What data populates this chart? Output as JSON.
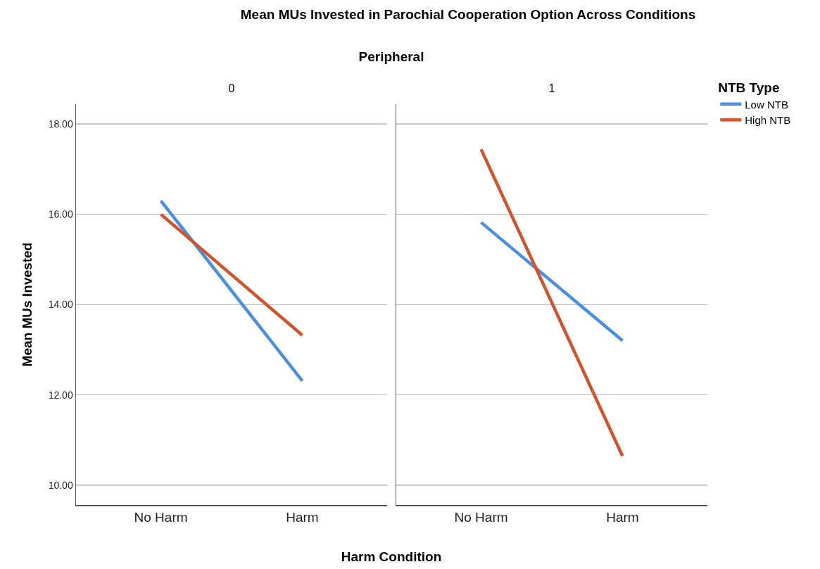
{
  "chart_data": [
    {
      "type": "line",
      "title": "0",
      "ylabel": "Mean MUs Invested",
      "annotations": [
        "Mean MUs Invested in Parochial Cooperation Option Across Conditions",
        "Peripheral"
      ],
      "categories": [
        "No Harm",
        "Harm"
      ],
      "series": [
        {
          "color": "#4a90e2",
          "values": [
            16.3,
            12.31
          ]
        },
        {
          "color": "#d2532a",
          "values": [
            16.0,
            13.32
          ]
        }
      ],
      "ylim": [
        9.56,
        18.44
      ],
      "yticks": [
        {
          "value": 10,
          "label": "10.00"
        },
        {
          "value": 12,
          "label": "12.00"
        },
        {
          "value": 14,
          "label": "14.00"
        },
        {
          "value": 16,
          "label": "16.00"
        },
        {
          "value": 18,
          "label": "18.00"
        }
      ],
      "grid": "y"
    },
    {
      "type": "line",
      "title": "1",
      "xlabel": "Harm Condition",
      "legend_title": "NTB Type",
      "categories": [
        "No Harm",
        "Harm"
      ],
      "series": [
        {
          "name": "Low NTB",
          "color": "#4a90e2",
          "values": [
            15.82,
            13.2
          ]
        },
        {
          "name": "High NTB",
          "color": "#d2532a",
          "values": [
            17.44,
            10.64
          ]
        }
      ],
      "ylim": [
        9.56,
        18.44
      ],
      "yticks": [
        {
          "value": 10,
          "label": null
        },
        {
          "value": 12,
          "label": null
        },
        {
          "value": 14,
          "label": null
        },
        {
          "value": 16,
          "label": null
        },
        {
          "value": 18,
          "label": null
        }
      ],
      "grid": "y",
      "legend": "right",
      "tick_labels": "x"
    }
  ]
}
